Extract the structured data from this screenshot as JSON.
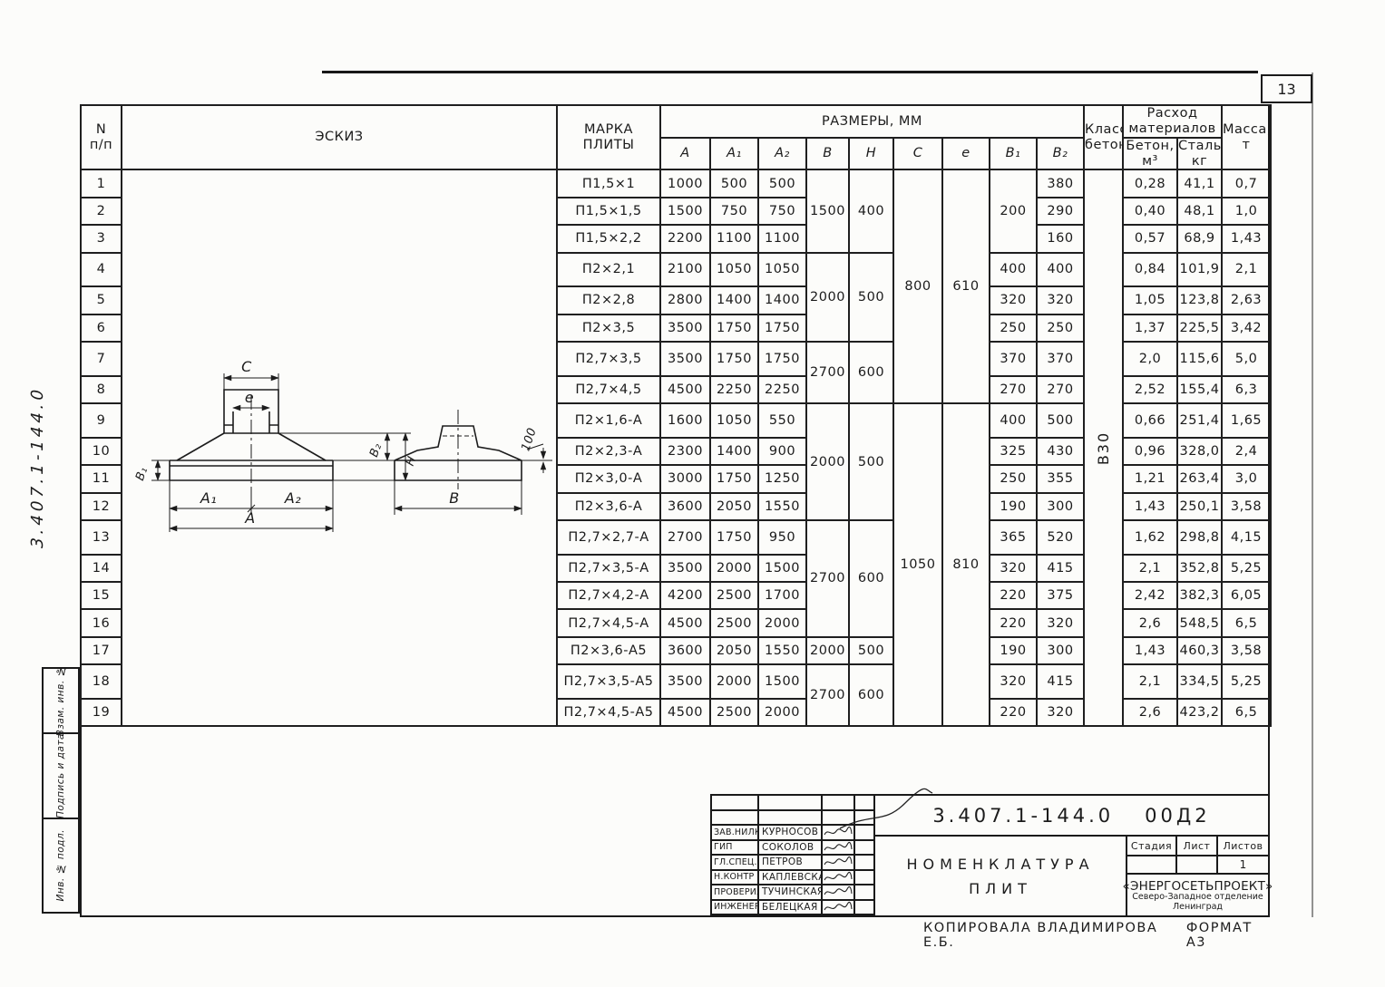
{
  "page": {
    "number": "13"
  },
  "side": {
    "doc_number_vertical": "3.407.1-144.0",
    "stamps": [
      "Взам. инв. №",
      "Подпись и дата",
      "Инв. № подл."
    ]
  },
  "table": {
    "headers": {
      "n": "N\nп/п",
      "eskiz": "Эскиз",
      "mark": "Марка\nплиты",
      "dimensions": "Размеры, мм",
      "dims": [
        "А",
        "А₁",
        "А₂",
        "В",
        "Н",
        "С",
        "е",
        "В₁",
        "В₂"
      ],
      "concrete_class": "Класс\nбетона",
      "materials": "Расход\nматериалов",
      "beton": "Бетон,\nм³",
      "steel": "Сталь,\nкг",
      "mass": "Масса,\nт"
    },
    "concrete_class": "В30",
    "rows": [
      {
        "n": "1",
        "mark": "П1,5×1",
        "A": "1000",
        "A1": "500",
        "A2": "500",
        "B": {
          "v": "1500",
          "span": 3
        },
        "H": {
          "v": "400",
          "span": 3
        },
        "C": {
          "v": "800",
          "span": 8
        },
        "e": {
          "v": "610",
          "span": 8
        },
        "B1": {
          "v": "200",
          "span": 3
        },
        "B2": "380",
        "beton": "0,28",
        "steel": "41,1",
        "mass": "0,7"
      },
      {
        "n": "2",
        "mark": "П1,5×1,5",
        "A": "1500",
        "A1": "750",
        "A2": "750",
        "B2": "290",
        "beton": "0,40",
        "steel": "48,1",
        "mass": "1,0"
      },
      {
        "n": "3",
        "mark": "П1,5×2,2",
        "A": "2200",
        "A1": "1100",
        "A2": "1100",
        "B2": "160",
        "beton": "0,57",
        "steel": "68,9",
        "mass": "1,43"
      },
      {
        "n": "4",
        "mark": "П2×2,1",
        "A": "2100",
        "A1": "1050",
        "A2": "1050",
        "B": {
          "v": "2000",
          "span": 3
        },
        "H": {
          "v": "500",
          "span": 3
        },
        "B1": "400",
        "B2": "400",
        "beton": "0,84",
        "steel": "101,9",
        "mass": "2,1"
      },
      {
        "n": "5",
        "mark": "П2×2,8",
        "A": "2800",
        "A1": "1400",
        "A2": "1400",
        "B1": "320",
        "B2": "320",
        "beton": "1,05",
        "steel": "123,8",
        "mass": "2,63"
      },
      {
        "n": "6",
        "mark": "П2×3,5",
        "A": "3500",
        "A1": "1750",
        "A2": "1750",
        "B1": "250",
        "B2": "250",
        "beton": "1,37",
        "steel": "225,5",
        "mass": "3,42"
      },
      {
        "n": "7",
        "mark": "П2,7×3,5",
        "A": "3500",
        "A1": "1750",
        "A2": "1750",
        "B": {
          "v": "2700",
          "span": 2
        },
        "H": {
          "v": "600",
          "span": 2
        },
        "B1": "370",
        "B2": "370",
        "beton": "2,0",
        "steel": "115,6",
        "mass": "5,0"
      },
      {
        "n": "8",
        "mark": "П2,7×4,5",
        "A": "4500",
        "A1": "2250",
        "A2": "2250",
        "B1": "270",
        "B2": "270",
        "beton": "2,52",
        "steel": "155,4",
        "mass": "6,3"
      },
      {
        "n": "9",
        "mark": "П2×1,6-А",
        "A": "1600",
        "A1": "1050",
        "A2": "550",
        "B": {
          "v": "2000",
          "span": 4
        },
        "H": {
          "v": "500",
          "span": 4
        },
        "C": {
          "v": "1050",
          "span": 11
        },
        "e": {
          "v": "810",
          "span": 11
        },
        "B1": "400",
        "B2": "500",
        "beton": "0,66",
        "steel": "251,4",
        "mass": "1,65"
      },
      {
        "n": "10",
        "mark": "П2×2,3-А",
        "A": "2300",
        "A1": "1400",
        "A2": "900",
        "B1": "325",
        "B2": "430",
        "beton": "0,96",
        "steel": "328,0",
        "mass": "2,4"
      },
      {
        "n": "11",
        "mark": "П2×3,0-А",
        "A": "3000",
        "A1": "1750",
        "A2": "1250",
        "B1": "250",
        "B2": "355",
        "beton": "1,21",
        "steel": "263,4",
        "mass": "3,0"
      },
      {
        "n": "12",
        "mark": "П2×3,6-А",
        "A": "3600",
        "A1": "2050",
        "A2": "1550",
        "B1": "190",
        "B2": "300",
        "beton": "1,43",
        "steel": "250,1",
        "mass": "3,58"
      },
      {
        "n": "13",
        "mark": "П2,7×2,7-А",
        "A": "2700",
        "A1": "1750",
        "A2": "950",
        "B": {
          "v": "2700",
          "span": 4
        },
        "H": {
          "v": "600",
          "span": 4
        },
        "B1": "365",
        "B2": "520",
        "beton": "1,62",
        "steel": "298,8",
        "mass": "4,15"
      },
      {
        "n": "14",
        "mark": "П2,7×3,5-А",
        "A": "3500",
        "A1": "2000",
        "A2": "1500",
        "B1": "320",
        "B2": "415",
        "beton": "2,1",
        "steel": "352,8",
        "mass": "5,25"
      },
      {
        "n": "15",
        "mark": "П2,7×4,2-А",
        "A": "4200",
        "A1": "2500",
        "A2": "1700",
        "B1": "220",
        "B2": "375",
        "beton": "2,42",
        "steel": "382,3",
        "mass": "6,05"
      },
      {
        "n": "16",
        "mark": "П2,7×4,5-А",
        "A": "4500",
        "A1": "2500",
        "A2": "2000",
        "B1": "220",
        "B2": "320",
        "beton": "2,6",
        "steel": "548,5",
        "mass": "6,5"
      },
      {
        "n": "17",
        "mark": "П2×3,6-А5",
        "A": "3600",
        "A1": "2050",
        "A2": "1550",
        "B": {
          "v": "2000",
          "span": 1
        },
        "H": {
          "v": "500",
          "span": 1
        },
        "B1": "190",
        "B2": "300",
        "beton": "1,43",
        "steel": "460,3",
        "mass": "3,58"
      },
      {
        "n": "18",
        "mark": "П2,7×3,5-А5",
        "A": "3500",
        "A1": "2000",
        "A2": "1500",
        "B": {
          "v": "2700",
          "span": 2
        },
        "H": {
          "v": "600",
          "span": 2
        },
        "B1": "320",
        "B2": "415",
        "beton": "2,1",
        "steel": "334,5",
        "mass": "5,25"
      },
      {
        "n": "19",
        "mark": "П2,7×4,5-А5",
        "A": "4500",
        "A1": "2500",
        "A2": "2000",
        "B1": "220",
        "B2": "320",
        "beton": "2,6",
        "steel": "423,2",
        "mass": "6,5"
      }
    ]
  },
  "sketch": {
    "C": "С",
    "e": "е",
    "B1": "В₁",
    "B2": "В₂",
    "H": "Н",
    "A1": "А₁",
    "A2": "А₂",
    "A": "А",
    "B": "В",
    "edge_offset": "100"
  },
  "title_block": {
    "doc_number": "3.407.1-144.0",
    "doc_suffix": "00Д2",
    "title_line1": "Номенклатура",
    "title_line2": "плит",
    "stage_label": "Стадия",
    "sheet_label": "Лист",
    "sheets_label": "Листов",
    "stage_value": "",
    "sheet_value": "",
    "sheets_value": "1",
    "org_name": "«ЭНЕРГОСЕТЬПРОЕКТ»",
    "org_branch": "Северо-Западное отделение",
    "org_city": "Ленинград",
    "signatures": [
      {
        "role": "Зав.НИЛКЭ",
        "name": "Курносов"
      },
      {
        "role": "ГИП",
        "name": "Соколов"
      },
      {
        "role": "Гл.спец.",
        "name": "Петров"
      },
      {
        "role": "Н.контр",
        "name": "Каплевская"
      },
      {
        "role": "Проверил",
        "name": "Тучинская"
      },
      {
        "role": "Инженер",
        "name": "Белецкая"
      }
    ]
  },
  "footer": {
    "copied_by": "Копировала Владимирова Е.Б.",
    "format": "Формат А3"
  }
}
